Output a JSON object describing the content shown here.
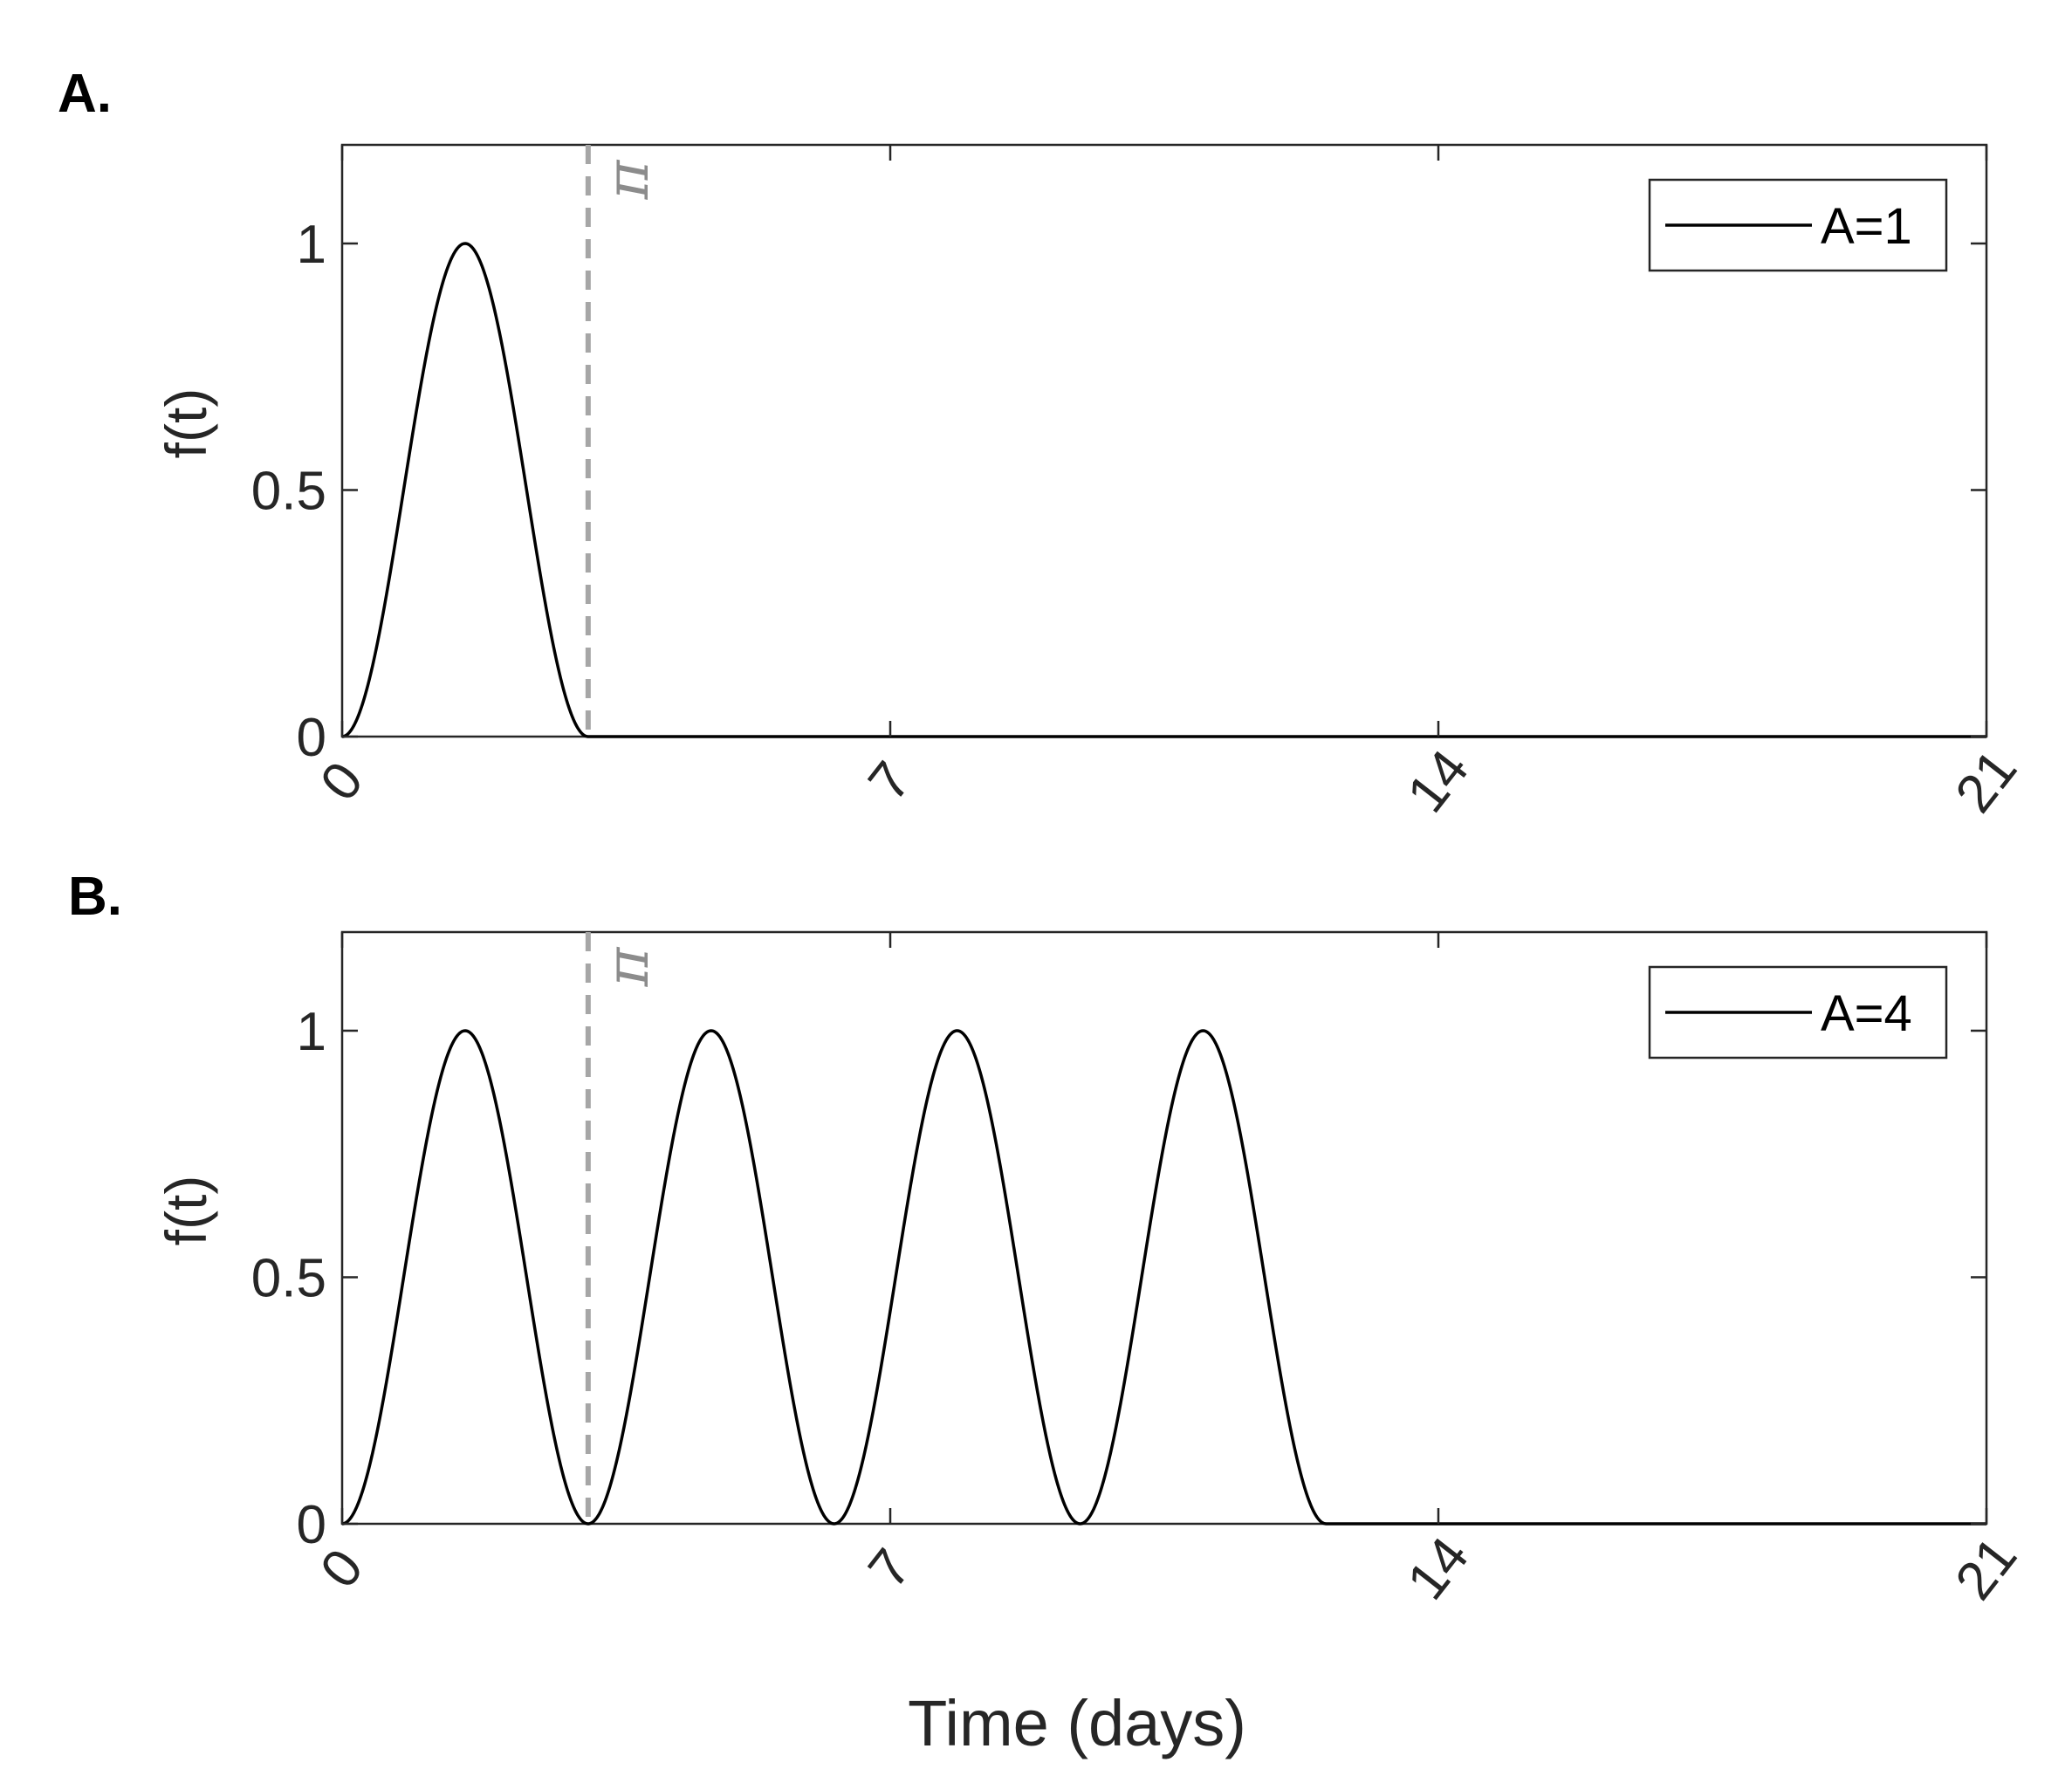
{
  "chart_data": [
    {
      "panel": "A.",
      "type": "line",
      "series": [
        {
          "name": "A=1",
          "A": 1,
          "color": "#000000"
        }
      ],
      "function": "f(t) = sin^2(t) for t in [0, A*pi], else 0",
      "xlim": [
        0,
        21
      ],
      "ylim": [
        0,
        1.2
      ],
      "xticks": [
        "0",
        "7",
        "14",
        "21"
      ],
      "yticks": [
        "0",
        "0.5",
        "1"
      ],
      "ylabel": "f(t)",
      "xlabel": "",
      "annotation": {
        "text": "π",
        "x": 3.14159,
        "style": "dashed",
        "color": "#a6a6a6"
      },
      "legend": "top-right",
      "grid": false
    },
    {
      "panel": "B.",
      "type": "line",
      "series": [
        {
          "name": "A=4",
          "A": 4,
          "color": "#000000"
        }
      ],
      "function": "f(t) = sin^2(t) for t in [0, A*pi], else 0",
      "xlim": [
        0,
        21
      ],
      "ylim": [
        0,
        1.2
      ],
      "xticks": [
        "0",
        "7",
        "14",
        "21"
      ],
      "yticks": [
        "0",
        "0.5",
        "1"
      ],
      "ylabel": "f(t)",
      "xlabel": "Time (days)",
      "annotation": {
        "text": "π",
        "x": 3.14159,
        "style": "dashed",
        "color": "#a6a6a6"
      },
      "legend": "top-right",
      "grid": false
    }
  ]
}
